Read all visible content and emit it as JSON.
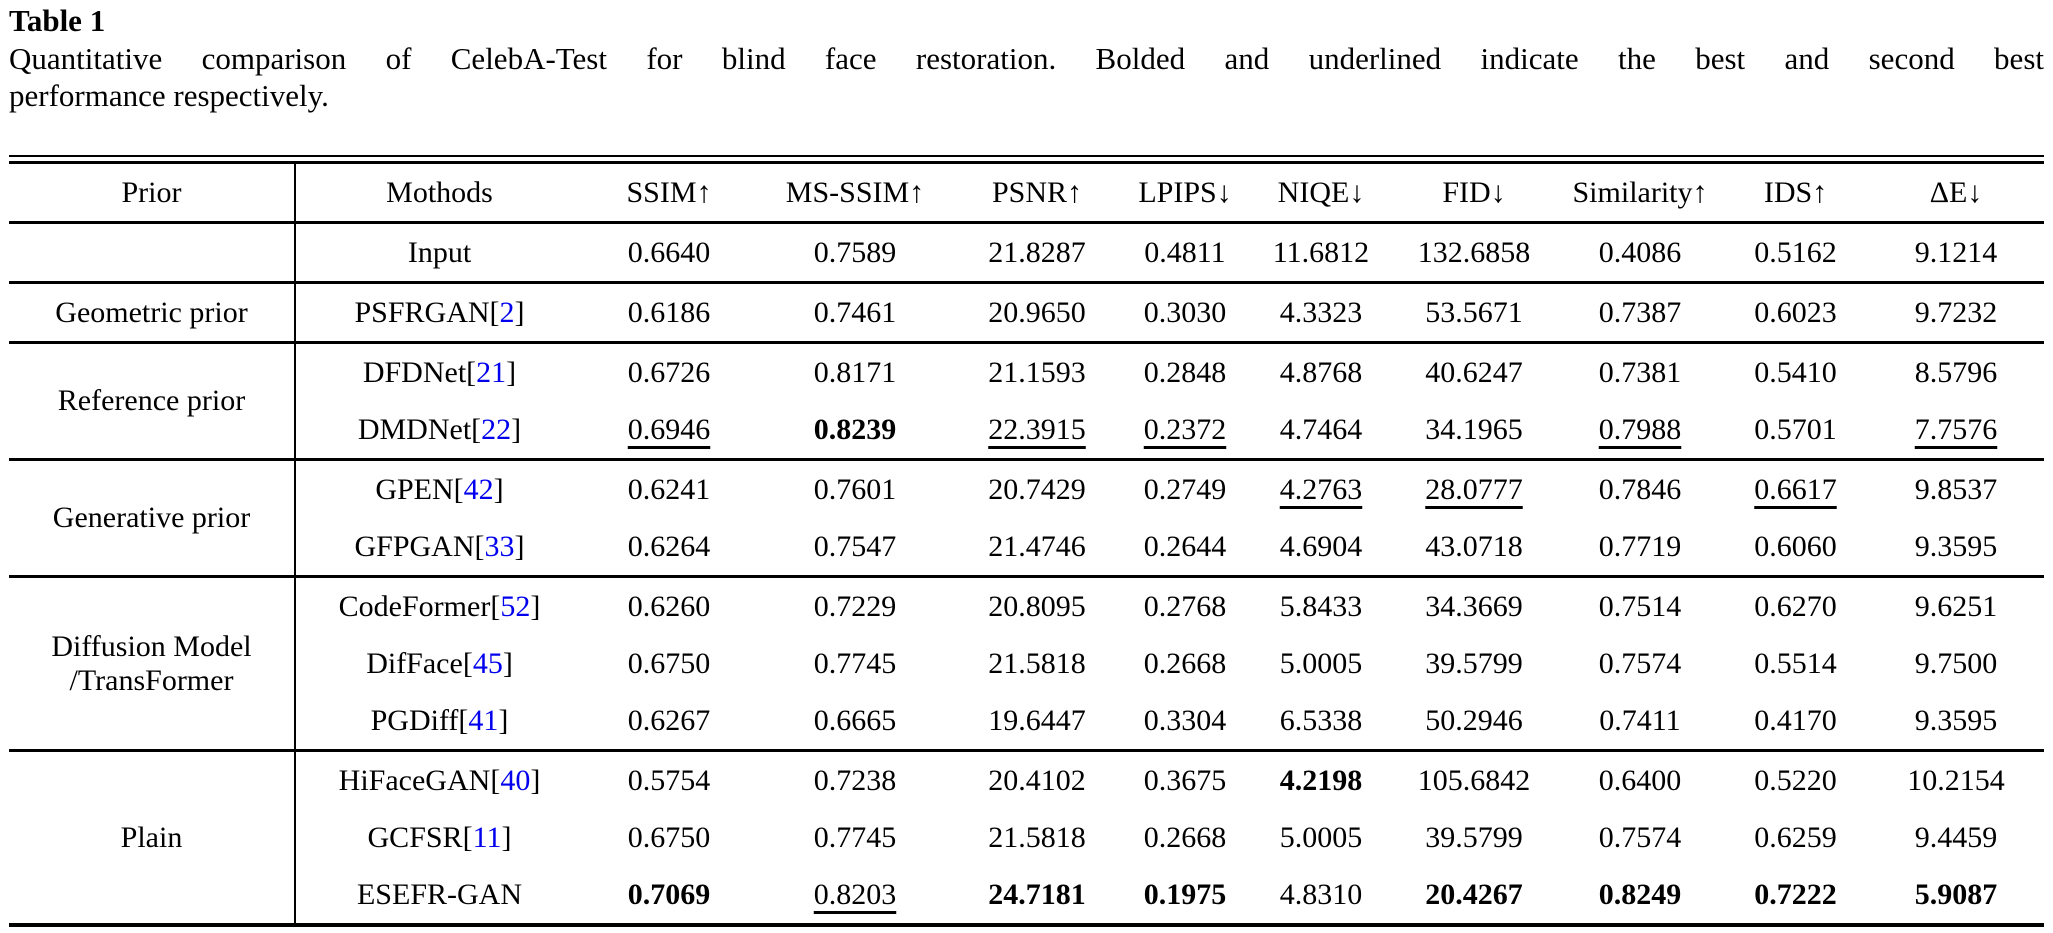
{
  "title": "Table 1",
  "caption_lines": [
    "Quantitative comparison of CelebA-Test for blind face restoration. Bolded and underlined indicate the best and second best",
    "performance respectively."
  ],
  "colors": {
    "citation_blue": "#0000EE",
    "text": "#000000",
    "background": "#FFFFFF"
  },
  "chart_data": {
    "type": "table",
    "columns": [
      "Prior",
      "Mothods",
      "SSIM↑",
      "MS-SSIM↑",
      "PSNR↑",
      "LPIPS↓",
      "NIQE↓",
      "FID↓",
      "Similarity↑",
      "IDS↑",
      "ΔE↓"
    ],
    "style_legend": {
      "n": "normal",
      "b": "bold (best)",
      "u": "underline (second best)"
    },
    "groups": [
      {
        "prior": "",
        "rows": [
          {
            "method": "Input",
            "cite": "",
            "values": [
              [
                "0.6640",
                "n"
              ],
              [
                "0.7589",
                "n"
              ],
              [
                "21.8287",
                "n"
              ],
              [
                "0.4811",
                "n"
              ],
              [
                "11.6812",
                "n"
              ],
              [
                "132.6858",
                "n"
              ],
              [
                "0.4086",
                "n"
              ],
              [
                "0.5162",
                "n"
              ],
              [
                "9.1214",
                "n"
              ]
            ]
          }
        ]
      },
      {
        "prior": "Geometric prior",
        "rows": [
          {
            "method": "PSFRGAN",
            "cite": "2",
            "values": [
              [
                "0.6186",
                "n"
              ],
              [
                "0.7461",
                "n"
              ],
              [
                "20.9650",
                "n"
              ],
              [
                "0.3030",
                "n"
              ],
              [
                "4.3323",
                "n"
              ],
              [
                "53.5671",
                "n"
              ],
              [
                "0.7387",
                "n"
              ],
              [
                "0.6023",
                "n"
              ],
              [
                "9.7232",
                "n"
              ]
            ]
          }
        ]
      },
      {
        "prior": "Reference prior",
        "rows": [
          {
            "method": "DFDNet",
            "cite": "21",
            "values": [
              [
                "0.6726",
                "n"
              ],
              [
                "0.8171",
                "n"
              ],
              [
                "21.1593",
                "n"
              ],
              [
                "0.2848",
                "n"
              ],
              [
                "4.8768",
                "n"
              ],
              [
                "40.6247",
                "n"
              ],
              [
                "0.7381",
                "n"
              ],
              [
                "0.5410",
                "n"
              ],
              [
                "8.5796",
                "n"
              ]
            ]
          },
          {
            "method": "DMDNet",
            "cite": "22",
            "values": [
              [
                "0.6946",
                "u"
              ],
              [
                "0.8239",
                "b"
              ],
              [
                "22.3915",
                "u"
              ],
              [
                "0.2372",
                "u"
              ],
              [
                "4.7464",
                "n"
              ],
              [
                "34.1965",
                "n"
              ],
              [
                "0.7988",
                "u"
              ],
              [
                "0.5701",
                "n"
              ],
              [
                "7.7576",
                "u"
              ]
            ]
          }
        ]
      },
      {
        "prior": "Generative prior",
        "rows": [
          {
            "method": "GPEN",
            "cite": "42",
            "values": [
              [
                "0.6241",
                "n"
              ],
              [
                "0.7601",
                "n"
              ],
              [
                "20.7429",
                "n"
              ],
              [
                "0.2749",
                "n"
              ],
              [
                "4.2763",
                "u"
              ],
              [
                "28.0777",
                "u"
              ],
              [
                "0.7846",
                "n"
              ],
              [
                "0.6617",
                "u"
              ],
              [
                "9.8537",
                "n"
              ]
            ]
          },
          {
            "method": "GFPGAN",
            "cite": "33",
            "values": [
              [
                "0.6264",
                "n"
              ],
              [
                "0.7547",
                "n"
              ],
              [
                "21.4746",
                "n"
              ],
              [
                "0.2644",
                "n"
              ],
              [
                "4.6904",
                "n"
              ],
              [
                "43.0718",
                "n"
              ],
              [
                "0.7719",
                "n"
              ],
              [
                "0.6060",
                "n"
              ],
              [
                "9.3595",
                "n"
              ]
            ]
          }
        ]
      },
      {
        "prior": "Diffusion Model /TransFormer",
        "rows": [
          {
            "method": "CodeFormer",
            "cite": "52",
            "values": [
              [
                "0.6260",
                "n"
              ],
              [
                "0.7229",
                "n"
              ],
              [
                "20.8095",
                "n"
              ],
              [
                "0.2768",
                "n"
              ],
              [
                "5.8433",
                "n"
              ],
              [
                "34.3669",
                "n"
              ],
              [
                "0.7514",
                "n"
              ],
              [
                "0.6270",
                "n"
              ],
              [
                "9.6251",
                "n"
              ]
            ]
          },
          {
            "method": "DifFace",
            "cite": "45",
            "values": [
              [
                "0.6750",
                "n"
              ],
              [
                "0.7745",
                "n"
              ],
              [
                "21.5818",
                "n"
              ],
              [
                "0.2668",
                "n"
              ],
              [
                "5.0005",
                "n"
              ],
              [
                "39.5799",
                "n"
              ],
              [
                "0.7574",
                "n"
              ],
              [
                "0.5514",
                "n"
              ],
              [
                "9.7500",
                "n"
              ]
            ]
          },
          {
            "method": "PGDiff",
            "cite": "41",
            "values": [
              [
                "0.6267",
                "n"
              ],
              [
                "0.6665",
                "n"
              ],
              [
                "19.6447",
                "n"
              ],
              [
                "0.3304",
                "n"
              ],
              [
                "6.5338",
                "n"
              ],
              [
                "50.2946",
                "n"
              ],
              [
                "0.7411",
                "n"
              ],
              [
                "0.4170",
                "n"
              ],
              [
                "9.3595",
                "n"
              ]
            ]
          }
        ]
      },
      {
        "prior": "Plain",
        "rows": [
          {
            "method": "HiFaceGAN",
            "cite": "40",
            "values": [
              [
                "0.5754",
                "n"
              ],
              [
                "0.7238",
                "n"
              ],
              [
                "20.4102",
                "n"
              ],
              [
                "0.3675",
                "n"
              ],
              [
                "4.2198",
                "b"
              ],
              [
                "105.6842",
                "n"
              ],
              [
                "0.6400",
                "n"
              ],
              [
                "0.5220",
                "n"
              ],
              [
                "10.2154",
                "n"
              ]
            ]
          },
          {
            "method": "GCFSR",
            "cite": "11",
            "values": [
              [
                "0.6750",
                "n"
              ],
              [
                "0.7745",
                "n"
              ],
              [
                "21.5818",
                "n"
              ],
              [
                "0.2668",
                "n"
              ],
              [
                "5.0005",
                "n"
              ],
              [
                "39.5799",
                "n"
              ],
              [
                "0.7574",
                "n"
              ],
              [
                "0.6259",
                "n"
              ],
              [
                "9.4459",
                "n"
              ]
            ]
          },
          {
            "method": "ESEFR-GAN",
            "cite": "",
            "values": [
              [
                "0.7069",
                "b"
              ],
              [
                "0.8203",
                "u"
              ],
              [
                "24.7181",
                "b"
              ],
              [
                "0.1975",
                "b"
              ],
              [
                "4.8310",
                "n"
              ],
              [
                "20.4267",
                "b"
              ],
              [
                "0.8249",
                "b"
              ],
              [
                "0.7222",
                "b"
              ],
              [
                "5.9087",
                "b"
              ]
            ]
          }
        ]
      }
    ]
  }
}
